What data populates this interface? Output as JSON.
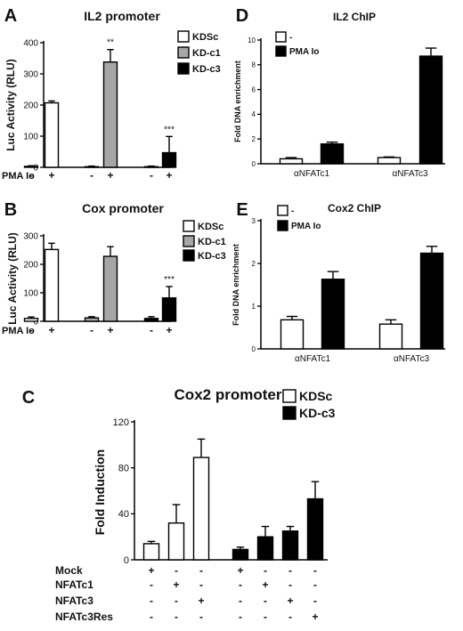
{
  "figure": {
    "panel_letters": [
      "A",
      "B",
      "C",
      "D",
      "E"
    ]
  },
  "chart_data": [
    {
      "panel": "A",
      "type": "bar",
      "title": "IL2 promoter",
      "ylabel": "Luc Activity (RLU)",
      "ylim": [
        0,
        400
      ],
      "yticks": [
        0,
        100,
        200,
        300,
        400
      ],
      "series": [
        {
          "name": "KDSc",
          "color": "#ffffff",
          "values": [
            3,
            207
          ],
          "errors": [
            2,
            6
          ],
          "signif": [
            "",
            ""
          ]
        },
        {
          "name": "KD-c1",
          "color": "#a6a6a6",
          "values": [
            2,
            338
          ],
          "errors": [
            2,
            40
          ],
          "signif": [
            "",
            "**"
          ]
        },
        {
          "name": "KD-c3",
          "color": "#000000",
          "values": [
            2,
            47
          ],
          "errors": [
            2,
            52
          ],
          "signif": [
            "",
            "***"
          ]
        }
      ],
      "legend_position": "top-right",
      "condition_rows": [
        {
          "label": "PMA Io",
          "values": [
            "-",
            "+",
            "-",
            "+",
            "-",
            "+"
          ]
        }
      ]
    },
    {
      "panel": "B",
      "type": "bar",
      "title": "Cox promoter",
      "ylabel": "Luc Activity (RLU)",
      "ylim": [
        0,
        300
      ],
      "yticks": [
        0,
        100,
        200,
        300
      ],
      "series": [
        {
          "name": "KDSc",
          "color": "#ffffff",
          "values": [
            10,
            252
          ],
          "errors": [
            5,
            22
          ],
          "signif": [
            "",
            ""
          ]
        },
        {
          "name": "KD-c1",
          "color": "#a6a6a6",
          "values": [
            12,
            228
          ],
          "errors": [
            4,
            34
          ],
          "signif": [
            "",
            ""
          ]
        },
        {
          "name": "KD-c3",
          "color": "#000000",
          "values": [
            10,
            82
          ],
          "errors": [
            6,
            40
          ],
          "signif": [
            "",
            "***"
          ]
        }
      ],
      "legend_position": "top-right",
      "condition_rows": [
        {
          "label": "PMA Io",
          "values": [
            "-",
            "+",
            "-",
            "+",
            "-",
            "+"
          ]
        }
      ]
    },
    {
      "panel": "C",
      "type": "bar",
      "title": "Cox2 promoter",
      "ylabel": "Fold Induction",
      "ylim": [
        0,
        120
      ],
      "yticks": [
        0,
        40,
        80,
        120
      ],
      "series": [
        {
          "name": "KDSc",
          "color": "#ffffff",
          "values": [
            14,
            32,
            89
          ],
          "errors": [
            2,
            16,
            16
          ]
        },
        {
          "name": "KD-c3",
          "color": "#000000",
          "values": [
            9,
            20,
            25,
            53
          ],
          "errors": [
            2,
            9,
            4,
            15
          ]
        }
      ],
      "legend_position": "top-right",
      "condition_rows": [
        {
          "label": "Mock",
          "values": [
            "+",
            "-",
            "-",
            "+",
            "-",
            "-",
            "-"
          ]
        },
        {
          "label": "NFATc1",
          "values": [
            "-",
            "+",
            "-",
            "-",
            "+",
            "-",
            "-"
          ]
        },
        {
          "label": "NFATc3",
          "values": [
            "-",
            "-",
            "+",
            "-",
            "-",
            "+",
            "-"
          ]
        },
        {
          "label": "NFATc3Res",
          "values": [
            "-",
            "-",
            "-",
            "-",
            "-",
            "-",
            "+"
          ]
        }
      ]
    },
    {
      "panel": "D",
      "type": "bar",
      "title": "IL2 ChIP",
      "ylabel": "Fold DNA enrichment",
      "ylim": [
        0,
        10
      ],
      "yticks": [
        0,
        2,
        4,
        6,
        8,
        10
      ],
      "categories": [
        "αNFATc1",
        "αNFATc3"
      ],
      "series": [
        {
          "name": "-",
          "color": "#ffffff",
          "values": [
            0.4,
            0.5
          ],
          "errors": [
            0.1,
            0.05
          ]
        },
        {
          "name": "PMA Io",
          "color": "#000000",
          "values": [
            1.6,
            8.7
          ],
          "errors": [
            0.15,
            0.65
          ]
        }
      ],
      "legend_position": "top-left"
    },
    {
      "panel": "E",
      "type": "bar",
      "title": "Cox2 ChIP",
      "ylabel": "Fold DNA enrichment",
      "ylim": [
        0,
        3
      ],
      "yticks": [
        0,
        1,
        2,
        3
      ],
      "categories": [
        "αNFATc1",
        "αNFATc3"
      ],
      "series": [
        {
          "name": "-",
          "color": "#ffffff",
          "values": [
            0.68,
            0.58
          ],
          "errors": [
            0.08,
            0.1
          ]
        },
        {
          "name": "PMA Io",
          "color": "#000000",
          "values": [
            1.63,
            2.24
          ],
          "errors": [
            0.18,
            0.16
          ]
        }
      ],
      "legend_position": "top-left"
    }
  ]
}
